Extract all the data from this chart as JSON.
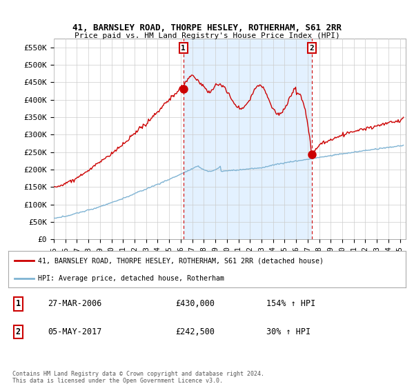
{
  "title": "41, BARNSLEY ROAD, THORPE HESLEY, ROTHERHAM, S61 2RR",
  "subtitle": "Price paid vs. HM Land Registry's House Price Index (HPI)",
  "ylim": [
    0,
    575000
  ],
  "yticks": [
    0,
    50000,
    100000,
    150000,
    200000,
    250000,
    300000,
    350000,
    400000,
    450000,
    500000,
    550000
  ],
  "ytick_labels": [
    "£0",
    "£50K",
    "£100K",
    "£150K",
    "£200K",
    "£250K",
    "£300K",
    "£350K",
    "£400K",
    "£450K",
    "£500K",
    "£550K"
  ],
  "xlim_start": 1995.0,
  "xlim_end": 2025.5,
  "sale1_x": 2006.23,
  "sale1_y": 430000,
  "sale2_x": 2017.35,
  "sale2_y": 242500,
  "red_line_color": "#cc0000",
  "blue_line_color": "#7fb3d3",
  "shade_color": "#ddeeff",
  "marker_color": "#cc0000",
  "legend_label_red": "41, BARNSLEY ROAD, THORPE HESLEY, ROTHERHAM, S61 2RR (detached house)",
  "legend_label_blue": "HPI: Average price, detached house, Rotherham",
  "table_row1_num": "1",
  "table_row1_date": "27-MAR-2006",
  "table_row1_price": "£430,000",
  "table_row1_hpi": "154% ↑ HPI",
  "table_row2_num": "2",
  "table_row2_date": "05-MAY-2017",
  "table_row2_price": "£242,500",
  "table_row2_hpi": "30% ↑ HPI",
  "footer": "Contains HM Land Registry data © Crown copyright and database right 2024.\nThis data is licensed under the Open Government Licence v3.0.",
  "background_color": "#ffffff",
  "grid_color": "#cccccc"
}
